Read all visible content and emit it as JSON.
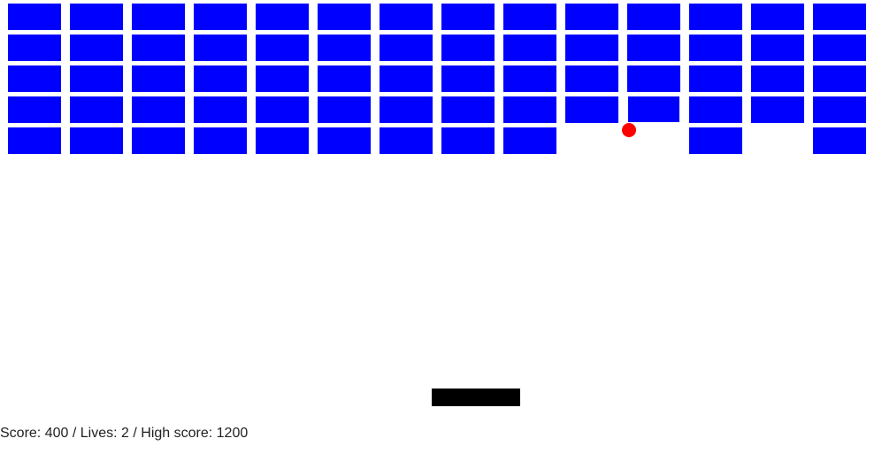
{
  "game": {
    "columns": 14,
    "rows": 5,
    "bricks": [
      [
        1,
        1,
        1,
        1,
        1,
        1,
        1,
        1,
        1,
        1,
        1,
        1,
        1,
        1
      ],
      [
        1,
        1,
        1,
        1,
        1,
        1,
        1,
        1,
        1,
        1,
        1,
        1,
        1,
        1
      ],
      [
        1,
        1,
        1,
        1,
        1,
        1,
        1,
        1,
        1,
        1,
        1,
        1,
        1,
        1
      ],
      [
        1,
        1,
        1,
        1,
        1,
        1,
        1,
        1,
        1,
        1,
        1,
        1,
        1,
        1
      ],
      [
        1,
        1,
        1,
        1,
        1,
        1,
        1,
        1,
        1,
        0,
        0,
        1,
        0,
        1
      ]
    ],
    "colors": {
      "brick": "#0000ff",
      "ball": "#ff0000",
      "paddle": "#000000",
      "background": "#ffffff"
    }
  },
  "status": {
    "score_label": "Score:",
    "score": "400",
    "lives_label": "Lives:",
    "lives": "2",
    "high_score_label": "High score:",
    "high_score": "1200",
    "separator": "/"
  }
}
